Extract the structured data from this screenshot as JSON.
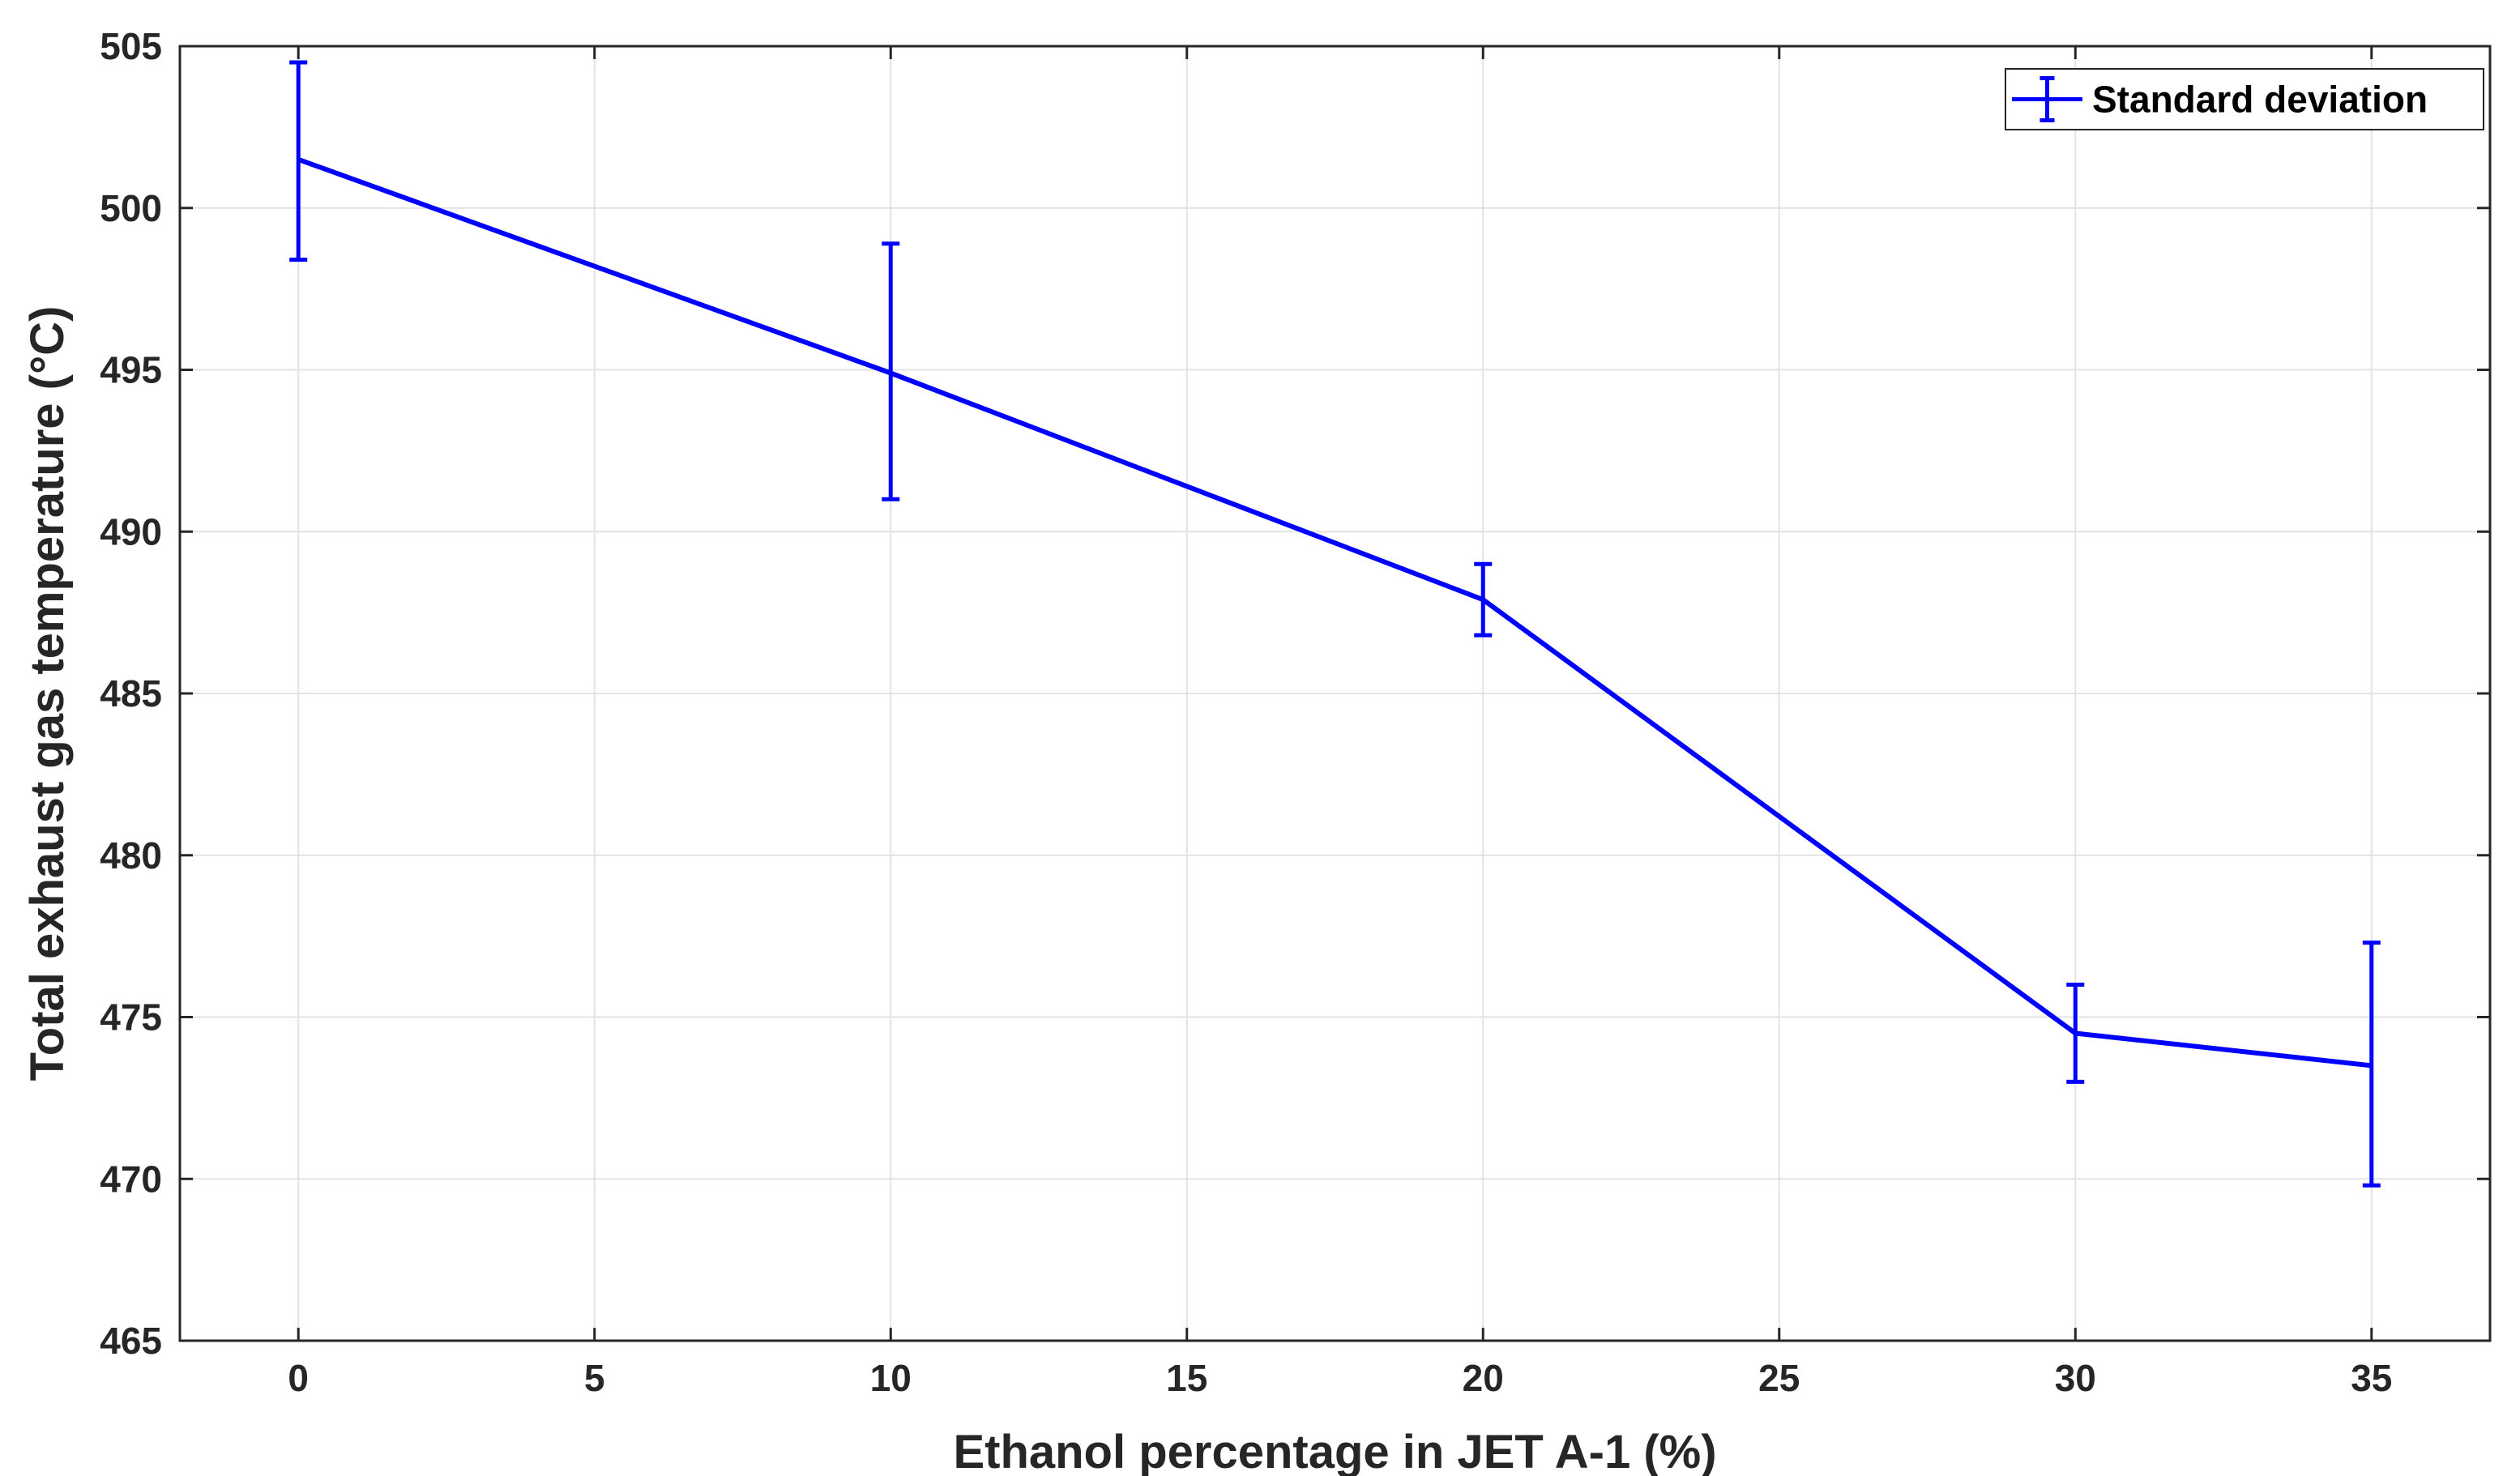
{
  "chart_data": {
    "type": "line",
    "title": "",
    "xlabel": "Ethanol percentage in JET A-1 (%)",
    "ylabel": "Total exhaust gas temperature (°C)",
    "xlim": [
      -2,
      37
    ],
    "ylim": [
      465,
      505
    ],
    "xticks": [
      0,
      5,
      10,
      15,
      20,
      25,
      30,
      35
    ],
    "yticks": [
      465,
      470,
      475,
      480,
      485,
      490,
      495,
      500,
      505
    ],
    "grid": true,
    "legend_position": "top-right",
    "series": [
      {
        "name": "Standard deviation",
        "color": "#0000ff",
        "x": [
          0,
          10,
          20,
          30,
          35
        ],
        "y": [
          501.5,
          494.9,
          487.9,
          474.5,
          473.5
        ],
        "error_low": [
          498.4,
          491.0,
          486.8,
          473.0,
          469.8
        ],
        "error_high": [
          504.5,
          498.9,
          489.0,
          476.0,
          477.3
        ]
      }
    ]
  }
}
